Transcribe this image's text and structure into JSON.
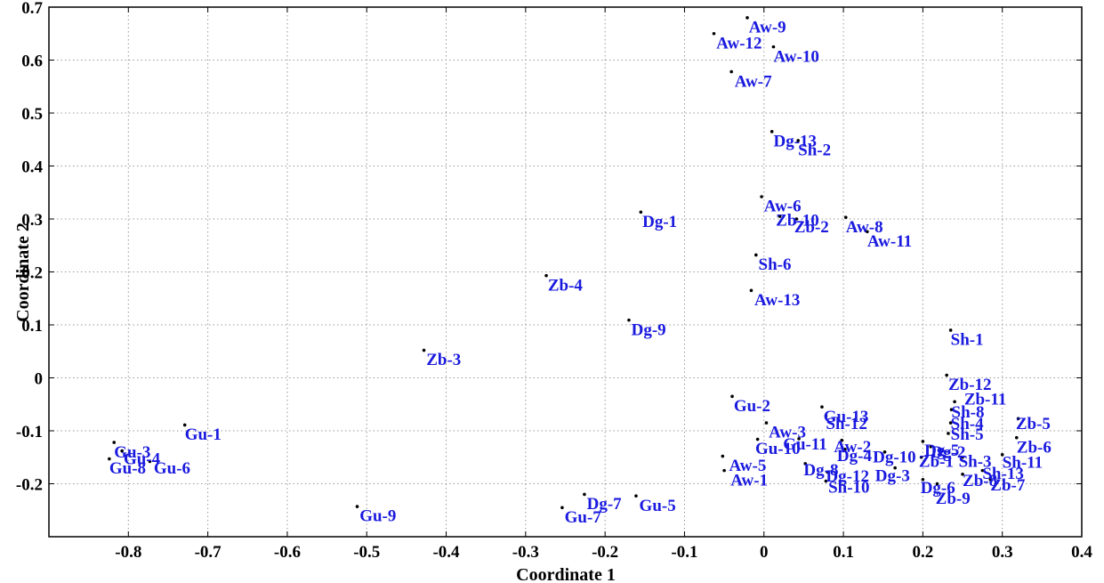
{
  "chart_data": {
    "type": "scatter",
    "title": "",
    "xlabel": "Coordinate 1",
    "ylabel": "Coordinate 2",
    "xlim": [
      -0.9,
      0.4
    ],
    "ylim": [
      -0.3,
      0.7
    ],
    "xticks": [
      -0.8,
      -0.7,
      -0.6,
      -0.5,
      -0.4,
      -0.3,
      -0.2,
      -0.1,
      0,
      0.1,
      0.2,
      0.3,
      0.4
    ],
    "xtick_labels": [
      "-0.8",
      "-0.7",
      "-0.6",
      "-0.5",
      "-0.4",
      "-0.3",
      "-0.2",
      "-0.1",
      "0",
      "0.1",
      "0.2",
      "0.3",
      "0.4"
    ],
    "yticks": [
      -0.2,
      -0.1,
      0,
      0.1,
      0.2,
      0.3,
      0.4,
      0.5,
      0.6,
      0.7
    ],
    "ytick_labels": [
      "-0.2",
      "-0.1",
      "0",
      "0.1",
      "0.2",
      "0.3",
      "0.4",
      "0.5",
      "0.6",
      "0.7"
    ],
    "grid": true,
    "colors": {
      "point": "#000000",
      "label": "#1a1adf",
      "grid": "#999999"
    },
    "points": [
      {
        "label": "Aw-9",
        "x": -0.021,
        "y": 0.68,
        "dx": 0.002,
        "dy": -0.028
      },
      {
        "label": "Aw-12",
        "x": -0.063,
        "y": 0.65,
        "dx": 0.003,
        "dy": -0.028
      },
      {
        "label": "Aw-10",
        "x": 0.012,
        "y": 0.625,
        "dx": 0.0,
        "dy": -0.028
      },
      {
        "label": "Aw-7",
        "x": -0.041,
        "y": 0.578,
        "dx": 0.004,
        "dy": -0.028
      },
      {
        "label": "Dg-13",
        "x": 0.01,
        "y": 0.465,
        "dx": 0.002,
        "dy": -0.028
      },
      {
        "label": "Sh-2",
        "x": 0.043,
        "y": 0.448,
        "dx": 0.0,
        "dy": -0.028
      },
      {
        "label": "Aw-6",
        "x": -0.003,
        "y": 0.342,
        "dx": 0.003,
        "dy": -0.028
      },
      {
        "label": "Zb-10",
        "x": 0.02,
        "y": 0.305,
        "dx": -0.005,
        "dy": -0.018
      },
      {
        "label": "Zb-2",
        "x": 0.041,
        "y": 0.3,
        "dx": -0.003,
        "dy": -0.025
      },
      {
        "label": "Aw-8",
        "x": 0.103,
        "y": 0.303,
        "dx": 0.0,
        "dy": -0.028
      },
      {
        "label": "Aw-11",
        "x": 0.13,
        "y": 0.276,
        "dx": 0.0,
        "dy": -0.028
      },
      {
        "label": "Dg-1",
        "x": -0.155,
        "y": 0.313,
        "dx": 0.002,
        "dy": -0.028
      },
      {
        "label": "Sh-6",
        "x": -0.01,
        "y": 0.232,
        "dx": 0.003,
        "dy": -0.028
      },
      {
        "label": "Zb-4",
        "x": -0.274,
        "y": 0.193,
        "dx": 0.002,
        "dy": -0.028
      },
      {
        "label": "Aw-13",
        "x": -0.016,
        "y": 0.165,
        "dx": 0.004,
        "dy": -0.028
      },
      {
        "label": "Dg-9",
        "x": -0.17,
        "y": 0.109,
        "dx": 0.003,
        "dy": -0.028
      },
      {
        "label": "Sh-1",
        "x": 0.235,
        "y": 0.09,
        "dx": 0.0,
        "dy": -0.028
      },
      {
        "label": "Zb-3",
        "x": -0.428,
        "y": 0.052,
        "dx": 0.003,
        "dy": -0.028
      },
      {
        "label": "Zb-12",
        "x": 0.23,
        "y": 0.005,
        "dx": 0.002,
        "dy": -0.028
      },
      {
        "label": "Zb-11",
        "x": 0.24,
        "y": -0.045,
        "dx": 0.012,
        "dy": -0.005
      },
      {
        "label": "Sh-8",
        "x": 0.236,
        "y": -0.06,
        "dx": 0.0,
        "dy": -0.015
      },
      {
        "label": "Sh-4",
        "x": 0.235,
        "y": -0.085,
        "dx": 0.0,
        "dy": -0.012
      },
      {
        "label": "Sh-5",
        "x": 0.232,
        "y": -0.105,
        "dx": 0.003,
        "dy": -0.012
      },
      {
        "label": "Zb-5",
        "x": 0.32,
        "y": -0.077,
        "dx": -0.003,
        "dy": -0.02
      },
      {
        "label": "Zb-6",
        "x": 0.318,
        "y": -0.113,
        "dx": 0.0,
        "dy": -0.028
      },
      {
        "label": "Gu-2",
        "x": -0.04,
        "y": -0.035,
        "dx": 0.002,
        "dy": -0.028
      },
      {
        "label": "Gu-13",
        "x": 0.073,
        "y": -0.055,
        "dx": 0.002,
        "dy": -0.028
      },
      {
        "label": "Sh-12",
        "x": 0.078,
        "y": -0.072,
        "dx": 0.0,
        "dy": -0.025
      },
      {
        "label": "Aw-3",
        "x": 0.003,
        "y": -0.085,
        "dx": 0.003,
        "dy": -0.028
      },
      {
        "label": "Gu-11",
        "x": 0.044,
        "y": -0.115,
        "dx": -0.02,
        "dy": -0.02
      },
      {
        "label": "Aw-2",
        "x": 0.098,
        "y": -0.118,
        "dx": -0.01,
        "dy": -0.022
      },
      {
        "label": "Dg-4",
        "x": 0.102,
        "y": -0.135,
        "dx": -0.01,
        "dy": -0.022
      },
      {
        "label": "Dg-10",
        "x": 0.152,
        "y": -0.14,
        "dx": -0.015,
        "dy": -0.02
      },
      {
        "label": "Gu-10",
        "x": -0.008,
        "y": -0.116,
        "dx": -0.003,
        "dy": -0.028
      },
      {
        "label": "Aw-5",
        "x": -0.052,
        "y": -0.148,
        "dx": 0.008,
        "dy": -0.028
      },
      {
        "label": "Aw-1",
        "x": -0.05,
        "y": -0.175,
        "dx": 0.008,
        "dy": -0.028
      },
      {
        "label": "Dg-8",
        "x": 0.052,
        "y": -0.162,
        "dx": -0.002,
        "dy": -0.022
      },
      {
        "label": "Dg-12",
        "x": 0.08,
        "y": -0.178,
        "dx": -0.002,
        "dy": -0.018
      },
      {
        "label": "Sh-10",
        "x": 0.078,
        "y": -0.195,
        "dx": 0.003,
        "dy": -0.022
      },
      {
        "label": "Dg-3",
        "x": 0.165,
        "y": -0.17,
        "dx": -0.025,
        "dy": -0.025
      },
      {
        "label": "Dg-5",
        "x": 0.2,
        "y": -0.12,
        "dx": 0.002,
        "dy": -0.027
      },
      {
        "label": "Dg-2",
        "x": 0.21,
        "y": -0.13,
        "dx": 0.0,
        "dy": -0.02
      },
      {
        "label": "Zb-1",
        "x": 0.198,
        "y": -0.15,
        "dx": -0.003,
        "dy": -0.018
      },
      {
        "label": "Sh-3",
        "x": 0.25,
        "y": -0.15,
        "dx": -0.005,
        "dy": -0.018
      },
      {
        "label": "Sh-11",
        "x": 0.3,
        "y": -0.145,
        "dx": 0.0,
        "dy": -0.025
      },
      {
        "label": "Sh-13",
        "x": 0.275,
        "y": -0.175,
        "dx": 0.0,
        "dy": -0.016
      },
      {
        "label": "Zb-8",
        "x": 0.25,
        "y": -0.182,
        "dx": 0.0,
        "dy": -0.022
      },
      {
        "label": "Zb-7",
        "x": 0.285,
        "y": -0.192,
        "dx": 0.0,
        "dy": -0.021
      },
      {
        "label": "Dg-6",
        "x": 0.2,
        "y": -0.192,
        "dx": -0.003,
        "dy": -0.026
      },
      {
        "label": "Zb-9",
        "x": 0.218,
        "y": -0.2,
        "dx": -0.002,
        "dy": -0.038
      },
      {
        "label": "Gu-1",
        "x": -0.729,
        "y": -0.089,
        "dx": 0.0,
        "dy": -0.028
      },
      {
        "label": "Gu-3",
        "x": -0.818,
        "y": -0.122,
        "dx": 0.0,
        "dy": -0.028
      },
      {
        "label": "Gu-4",
        "x": -0.808,
        "y": -0.138,
        "dx": 0.002,
        "dy": -0.025
      },
      {
        "label": "Gu-8",
        "x": -0.824,
        "y": -0.153,
        "dx": 0.0,
        "dy": -0.028
      },
      {
        "label": "Gu-6",
        "x": -0.773,
        "y": -0.158,
        "dx": 0.005,
        "dy": -0.023
      },
      {
        "label": "Gu-9",
        "x": -0.512,
        "y": -0.243,
        "dx": 0.003,
        "dy": -0.028
      },
      {
        "label": "Dg-7",
        "x": -0.226,
        "y": -0.22,
        "dx": 0.003,
        "dy": -0.028
      },
      {
        "label": "Gu-7",
        "x": -0.254,
        "y": -0.245,
        "dx": 0.003,
        "dy": -0.028
      },
      {
        "label": "Gu-5",
        "x": -0.161,
        "y": -0.223,
        "dx": 0.004,
        "dy": -0.028
      }
    ]
  }
}
